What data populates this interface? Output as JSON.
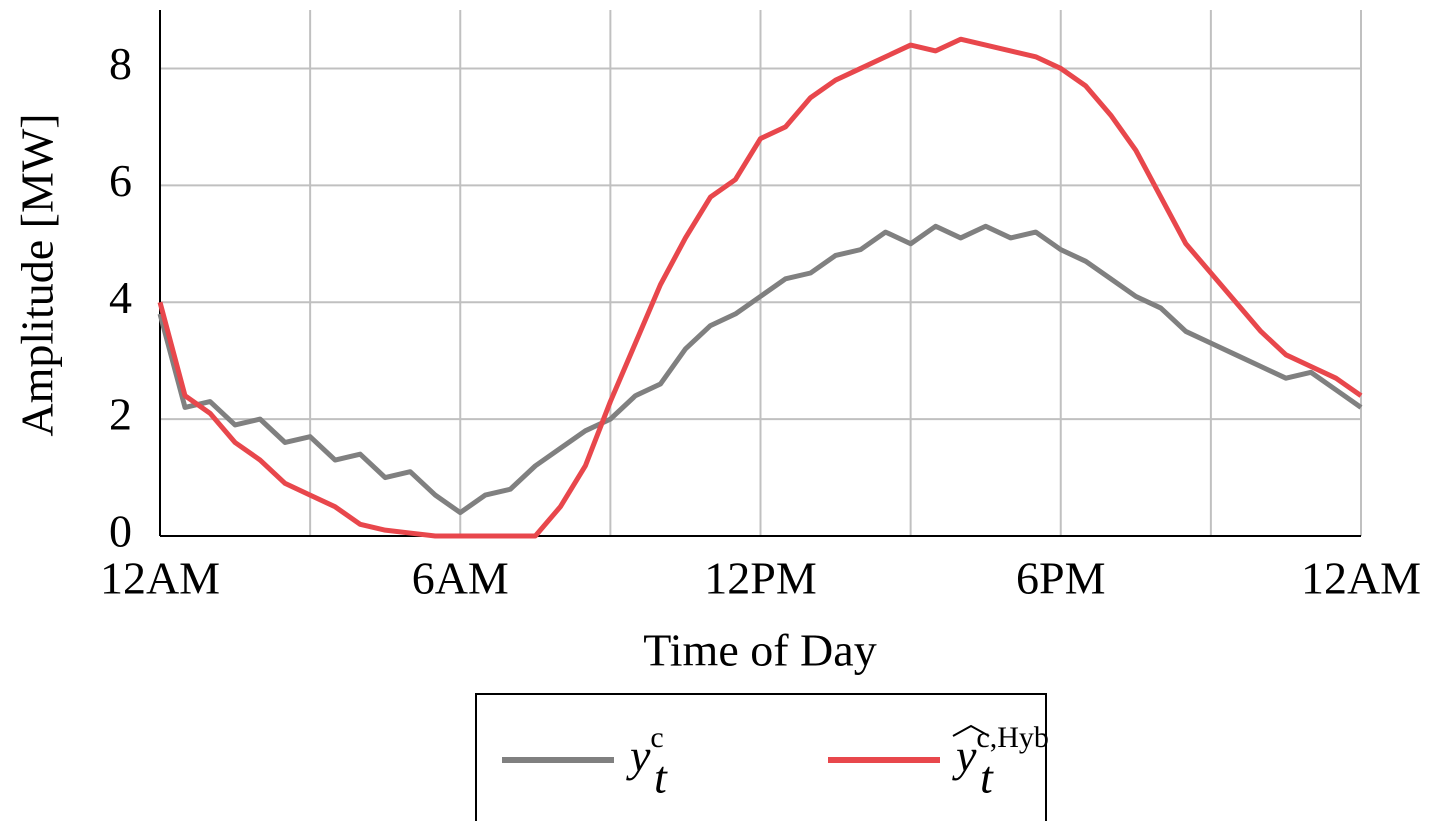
{
  "chart_data": {
    "type": "line",
    "x_label": "Time of Day",
    "y_label": "Amplitude [MW]",
    "x": [
      0,
      0.5,
      1,
      1.5,
      2,
      2.5,
      3,
      3.5,
      4,
      4.5,
      5,
      5.5,
      6,
      6.5,
      7,
      7.5,
      8,
      8.5,
      9,
      9.5,
      10,
      10.5,
      11,
      11.5,
      12,
      12.5,
      13,
      13.5,
      14,
      14.5,
      15,
      15.5,
      16,
      16.5,
      17,
      17.5,
      18,
      18.5,
      19,
      19.5,
      20,
      20.5,
      21,
      21.5,
      22,
      22.5,
      23,
      23.5,
      24
    ],
    "series": [
      {
        "name": "y",
        "subscript": "t",
        "superscript": "c",
        "color": "#808080",
        "values": [
          3.8,
          2.2,
          2.3,
          1.9,
          2.0,
          1.6,
          1.7,
          1.3,
          1.4,
          1.0,
          1.1,
          0.7,
          0.4,
          0.7,
          0.8,
          1.2,
          1.5,
          1.8,
          2.0,
          2.4,
          2.6,
          3.2,
          3.6,
          3.8,
          4.1,
          4.4,
          4.5,
          4.8,
          4.9,
          5.2,
          5.0,
          5.3,
          5.1,
          5.3,
          5.1,
          5.2,
          4.9,
          4.7,
          4.4,
          4.1,
          3.9,
          3.5,
          3.3,
          3.1,
          2.9,
          2.7,
          2.8,
          2.5,
          2.2
        ]
      },
      {
        "name": "y",
        "subscript": "t",
        "superscript": "c,Hyb",
        "hat": true,
        "color": "#e8474c",
        "values": [
          4.0,
          2.4,
          2.1,
          1.6,
          1.3,
          0.9,
          0.7,
          0.5,
          0.2,
          0.1,
          0.05,
          0,
          0,
          0,
          0,
          0,
          0.5,
          1.2,
          2.3,
          3.3,
          4.3,
          5.1,
          5.8,
          6.1,
          6.8,
          7.0,
          7.5,
          7.8,
          8.0,
          8.2,
          8.4,
          8.3,
          8.5,
          8.4,
          8.3,
          8.2,
          8.0,
          7.7,
          7.2,
          6.6,
          5.8,
          5.0,
          4.5,
          4.0,
          3.5,
          3.1,
          2.9,
          2.7,
          2.4
        ]
      }
    ],
    "xlim": [
      0,
      24
    ],
    "xticks": [
      {
        "value": 0,
        "label": "12AM"
      },
      {
        "value": 6,
        "label": "6AM"
      },
      {
        "value": 12,
        "label": "12PM"
      },
      {
        "value": 18,
        "label": "6PM"
      },
      {
        "value": 24,
        "label": "12AM"
      }
    ],
    "xminorticks": [
      3,
      9,
      15,
      21
    ],
    "ylim": [
      0,
      9
    ],
    "yticks": [
      0,
      2,
      4,
      6,
      8
    ],
    "grid": true,
    "legend": "bottom"
  }
}
